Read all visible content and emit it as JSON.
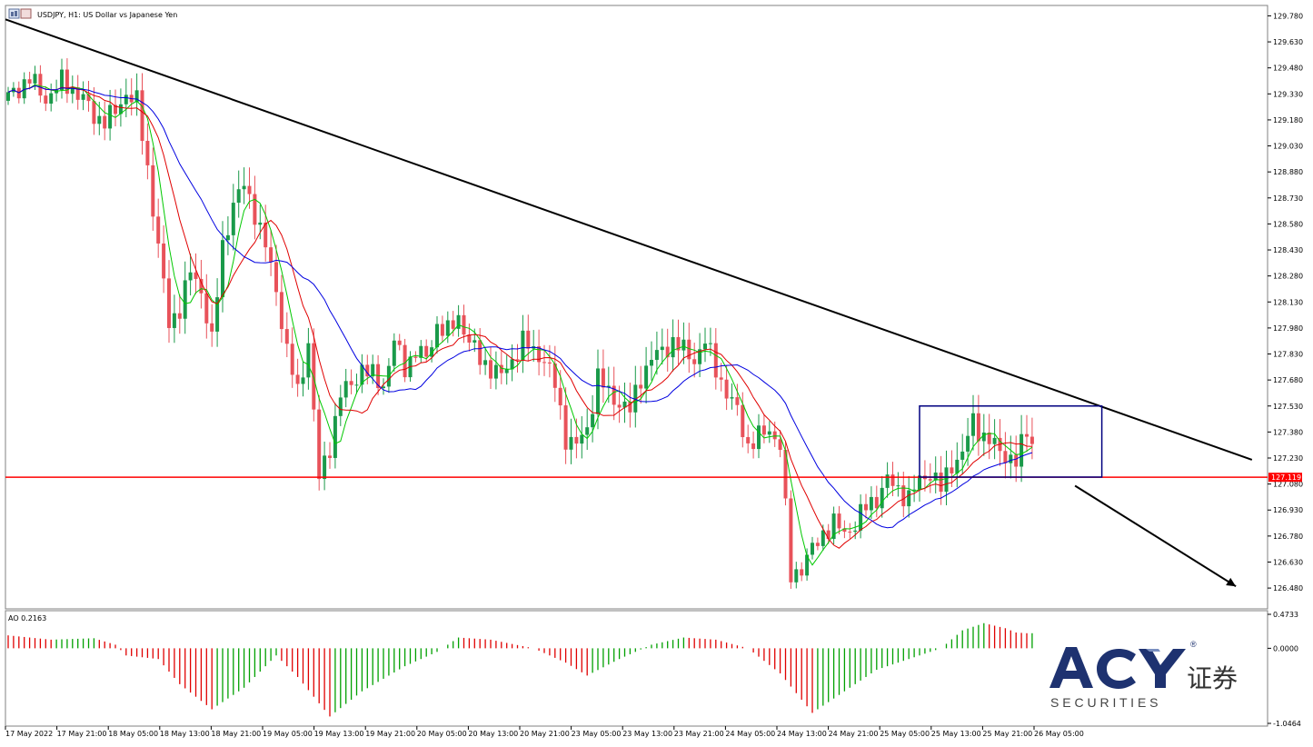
{
  "window": {
    "title": "USDJPY, H1:  US Dollar vs Japanese Yen"
  },
  "chart_data": [
    {
      "type": "candlestick",
      "title": "USDJPY, H1:  US Dollar vs Japanese Yen",
      "ylim": [
        126.36,
        129.84
      ],
      "y_ticks": [
        "129.780",
        "129.630",
        "129.480",
        "129.330",
        "129.180",
        "129.030",
        "128.880",
        "128.730",
        "128.580",
        "128.430",
        "128.280",
        "128.130",
        "127.980",
        "127.830",
        "127.680",
        "127.530",
        "127.380",
        "127.230",
        "127.080",
        "126.930",
        "126.780",
        "126.630",
        "126.480"
      ],
      "x_ticks": [
        "17 May 2022",
        "17 May 21:00",
        "18 May 05:00",
        "18 May 13:00",
        "18 May 21:00",
        "19 May 05:00",
        "19 May 13:00",
        "19 May 21:00",
        "20 May 05:00",
        "20 May 13:00",
        "20 May 21:00",
        "23 May 05:00",
        "23 May 13:00",
        "23 May 21:00",
        "24 May 05:00",
        "24 May 13:00",
        "24 May 21:00",
        "25 May 05:00",
        "25 May 13:00",
        "25 May 21:00",
        "26 May 05:00"
      ],
      "close_path": [
        [
          0,
          129.31
        ],
        [
          4,
          129.42
        ],
        [
          7,
          129.3
        ],
        [
          10,
          129.4
        ],
        [
          12,
          129.36
        ],
        [
          14,
          129.3
        ],
        [
          16,
          129.2
        ],
        [
          18,
          129.18
        ],
        [
          20,
          129.22
        ],
        [
          22,
          129.34
        ],
        [
          24,
          129.28
        ],
        [
          26,
          128.9
        ],
        [
          28,
          128.45
        ],
        [
          30,
          128.0
        ],
        [
          32,
          128.1
        ],
        [
          34,
          128.3
        ],
        [
          36,
          128.2
        ],
        [
          38,
          127.9
        ],
        [
          40,
          128.45
        ],
        [
          42,
          128.7
        ],
        [
          44,
          128.8
        ],
        [
          46,
          128.65
        ],
        [
          48,
          128.45
        ],
        [
          50,
          128.2
        ],
        [
          52,
          127.85
        ],
        [
          54,
          127.6
        ],
        [
          56,
          127.9
        ],
        [
          58,
          127.1
        ],
        [
          60,
          127.3
        ],
        [
          62,
          127.6
        ],
        [
          64,
          127.65
        ],
        [
          66,
          127.75
        ],
        [
          68,
          127.7
        ],
        [
          70,
          127.65
        ],
        [
          72,
          127.9
        ],
        [
          74,
          127.75
        ],
        [
          76,
          127.85
        ],
        [
          78,
          127.8
        ],
        [
          80,
          128.0
        ],
        [
          82,
          127.95
        ],
        [
          84,
          128.05
        ],
        [
          86,
          127.9
        ],
        [
          88,
          127.8
        ],
        [
          90,
          127.75
        ],
        [
          92,
          127.7
        ],
        [
          94,
          127.8
        ],
        [
          96,
          127.9
        ],
        [
          98,
          127.85
        ],
        [
          100,
          127.8
        ],
        [
          102,
          127.65
        ],
        [
          104,
          127.35
        ],
        [
          106,
          127.3
        ],
        [
          108,
          127.4
        ],
        [
          110,
          127.7
        ],
        [
          112,
          127.6
        ],
        [
          114,
          127.55
        ],
        [
          116,
          127.5
        ],
        [
          118,
          127.7
        ],
        [
          120,
          127.8
        ],
        [
          122,
          127.85
        ],
        [
          124,
          127.9
        ],
        [
          126,
          127.85
        ],
        [
          128,
          127.8
        ],
        [
          130,
          127.9
        ],
        [
          132,
          127.75
        ],
        [
          134,
          127.6
        ],
        [
          136,
          127.5
        ],
        [
          138,
          127.3
        ],
        [
          140,
          127.35
        ],
        [
          142,
          127.4
        ],
        [
          144,
          127.3
        ],
        [
          146,
          126.55
        ],
        [
          148,
          126.6
        ],
        [
          150,
          126.7
        ],
        [
          152,
          126.8
        ],
        [
          154,
          126.85
        ],
        [
          156,
          126.8
        ],
        [
          158,
          126.85
        ],
        [
          160,
          126.95
        ],
        [
          162,
          127.0
        ],
        [
          164,
          127.1
        ],
        [
          166,
          127.05
        ],
        [
          168,
          127.0
        ],
        [
          170,
          127.1
        ],
        [
          172,
          127.15
        ],
        [
          174,
          127.05
        ],
        [
          176,
          127.2
        ],
        [
          178,
          127.25
        ],
        [
          180,
          127.45
        ],
        [
          182,
          127.35
        ],
        [
          184,
          127.3
        ],
        [
          186,
          127.25
        ],
        [
          188,
          127.2
        ],
        [
          190,
          127.4
        ],
        [
          191,
          127.32
        ]
      ],
      "moving_averages": [
        {
          "color": "#00c800",
          "period_hint": "fast"
        },
        {
          "color": "#e00000",
          "period_hint": "medium"
        },
        {
          "color": "#0000e0",
          "period_hint": "slow"
        }
      ],
      "annotations": {
        "trendline": {
          "from": [
            0,
            129.76
          ],
          "to": [
            232,
            127.22
          ],
          "color": "#000000"
        },
        "support_line": {
          "value": 127.119,
          "label": "127.119",
          "color": "#ff0000"
        },
        "range_box": {
          "x0": 170,
          "x1": 204,
          "y0": 127.12,
          "y1": 127.53,
          "color": "#000080"
        },
        "arrow": {
          "from": [
            199,
            127.07
          ],
          "to": [
            229,
            126.49
          ],
          "color": "#000000"
        }
      }
    },
    {
      "type": "bar",
      "title": "AO 0.2163",
      "ylim": [
        -1.0464,
        0.4733
      ],
      "y_ticks": [
        "0.4733",
        "0.0000",
        "-1.0464"
      ],
      "up_color": "#00a000",
      "down_color": "#e00000",
      "keypoints": [
        [
          0,
          0.18
        ],
        [
          8,
          0.12
        ],
        [
          16,
          0.14
        ],
        [
          20,
          0.05
        ],
        [
          22,
          -0.1
        ],
        [
          28,
          -0.15
        ],
        [
          32,
          -0.5
        ],
        [
          38,
          -0.85
        ],
        [
          44,
          -0.55
        ],
        [
          50,
          -0.1
        ],
        [
          54,
          -0.4
        ],
        [
          60,
          -0.95
        ],
        [
          66,
          -0.6
        ],
        [
          74,
          -0.25
        ],
        [
          80,
          -0.05
        ],
        [
          84,
          0.15
        ],
        [
          90,
          0.12
        ],
        [
          98,
          0.0
        ],
        [
          104,
          -0.2
        ],
        [
          108,
          -0.38
        ],
        [
          114,
          -0.15
        ],
        [
          120,
          0.05
        ],
        [
          126,
          0.15
        ],
        [
          132,
          0.12
        ],
        [
          138,
          0.0
        ],
        [
          144,
          -0.35
        ],
        [
          150,
          -0.9
        ],
        [
          156,
          -0.6
        ],
        [
          162,
          -0.3
        ],
        [
          168,
          -0.15
        ],
        [
          174,
          0.0
        ],
        [
          178,
          0.25
        ],
        [
          182,
          0.35
        ],
        [
          186,
          0.28
        ],
        [
          188,
          0.22
        ],
        [
          190,
          0.21
        ]
      ]
    }
  ],
  "logo": {
    "brand": "ACY",
    "chinese": "证券",
    "securities": "S E C U R I T I E S",
    "registered": "®"
  }
}
